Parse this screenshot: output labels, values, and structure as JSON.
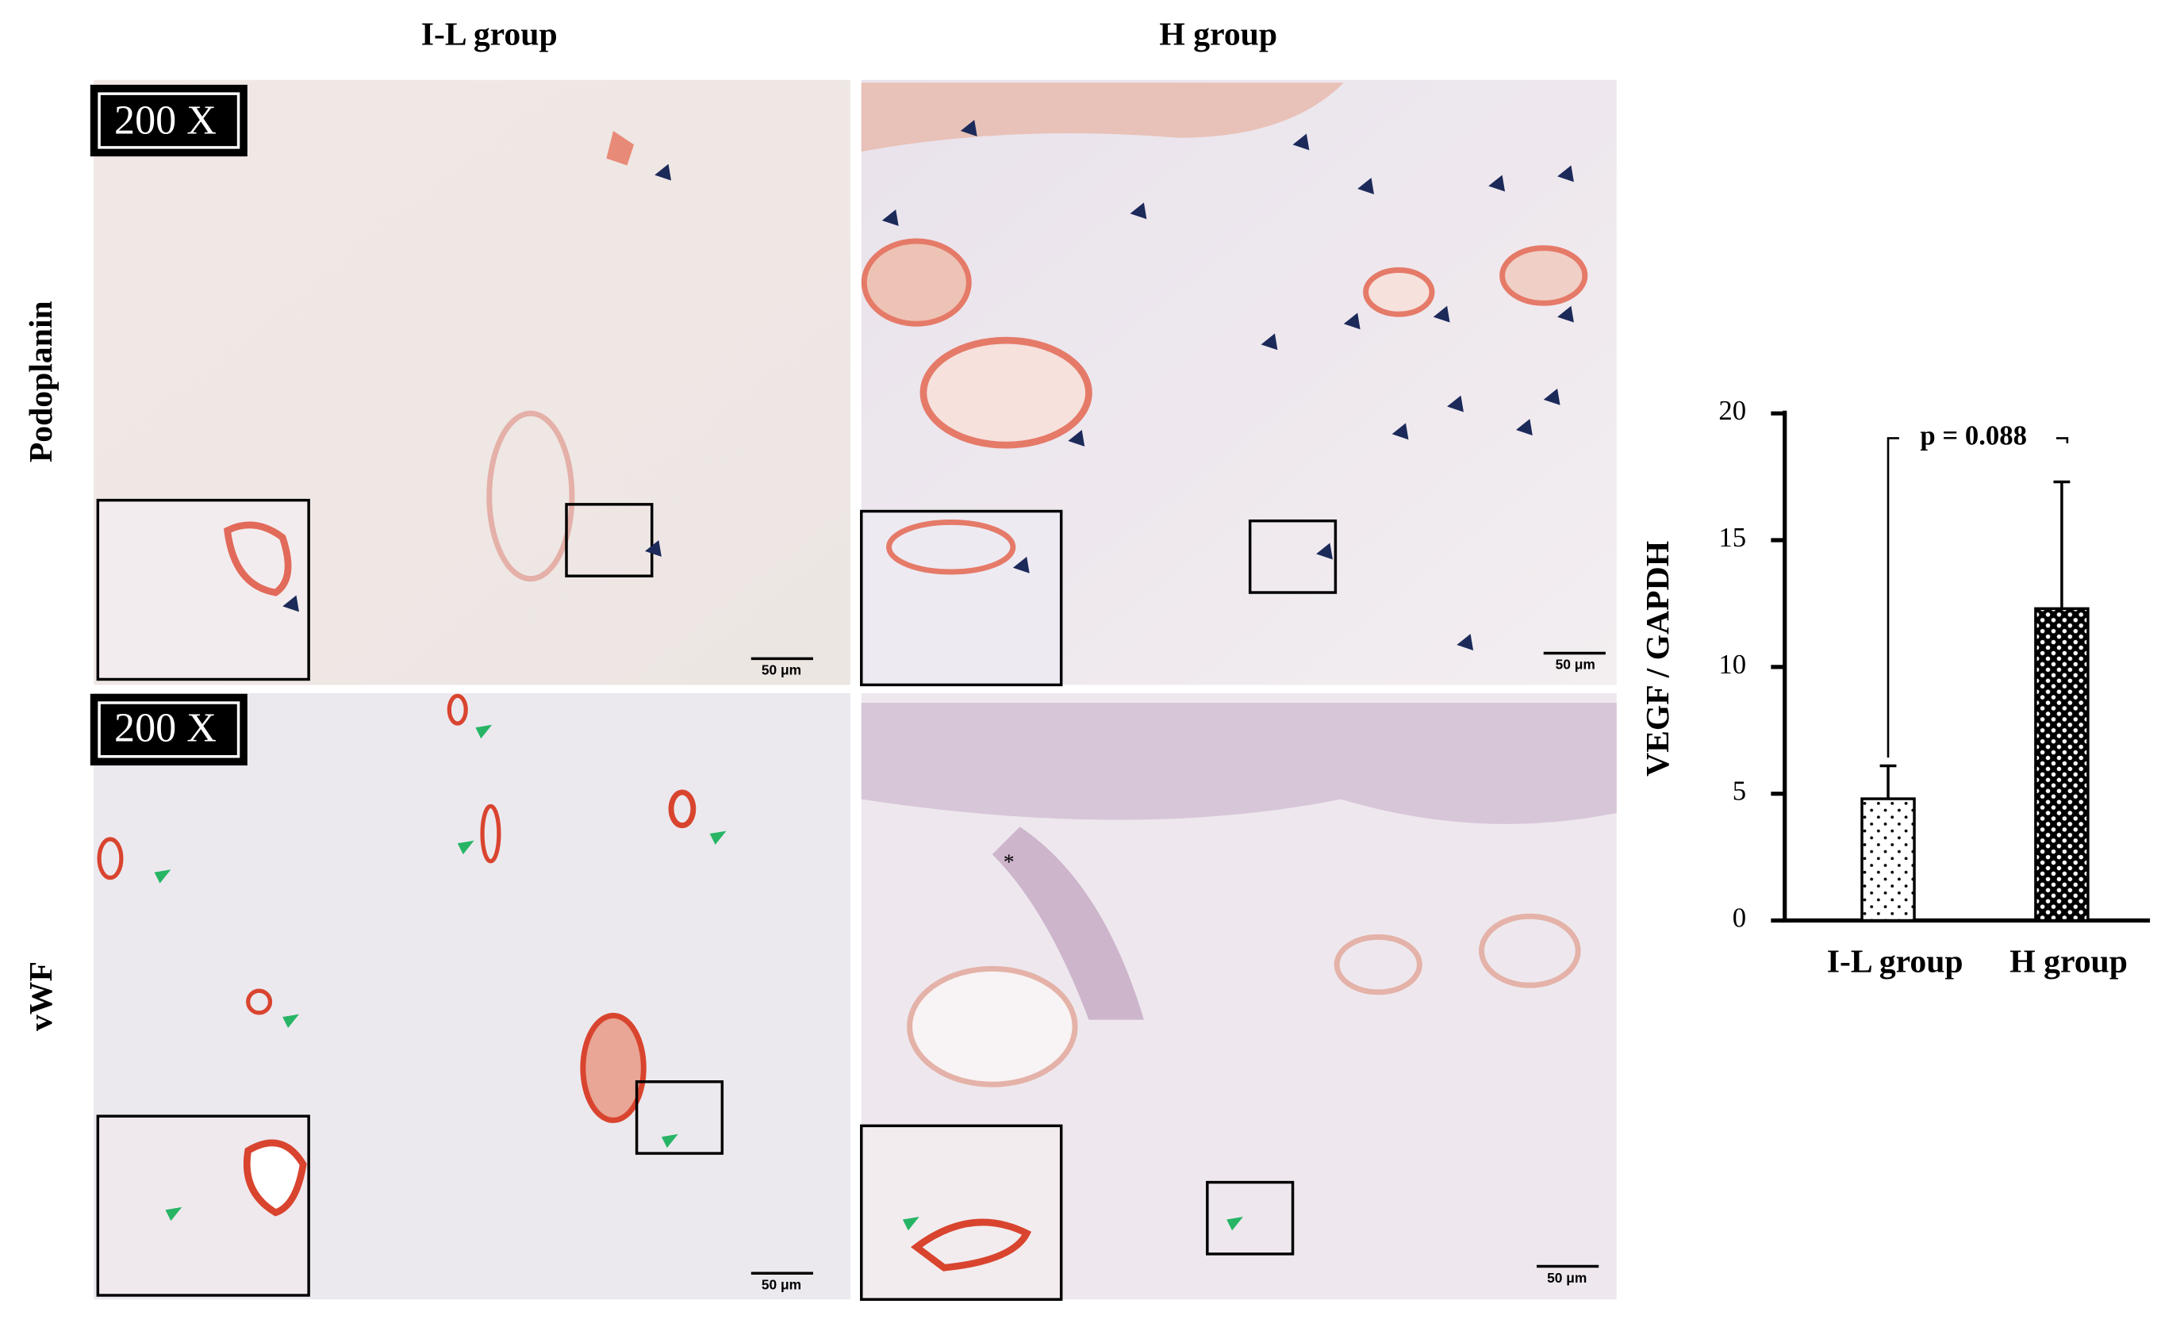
{
  "panels": {
    "columns": [
      "I-L group",
      "H group"
    ],
    "rows": [
      "Podoplanin",
      "vWF"
    ],
    "magnification": [
      "200 X",
      "200 X"
    ],
    "scale_bars": [
      "50 μm",
      "50 μm",
      "50 μm",
      "50 μm"
    ]
  },
  "chart_data": {
    "type": "bar",
    "ylabel": "VEGF / GAPDH",
    "categories": [
      "I-L group",
      "H group"
    ],
    "values": [
      4.8,
      12.3
    ],
    "errors": [
      1.3,
      5.0
    ],
    "fill_patterns": [
      "dots",
      "checker"
    ],
    "annotation": "p = 0.088",
    "ylim": [
      0,
      20
    ],
    "yticks": [
      0,
      5,
      10,
      15,
      20
    ]
  }
}
